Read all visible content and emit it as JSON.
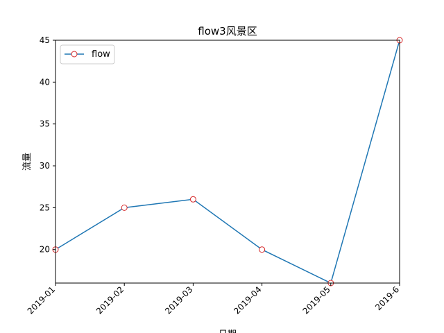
{
  "chart_data": {
    "type": "line",
    "title": "flow3风景区",
    "xlabel": "日期",
    "ylabel": "流量",
    "categories": [
      "2019-01",
      "2019-02",
      "2019-03",
      "2019-04",
      "2019-05",
      "2019-6"
    ],
    "series": [
      {
        "name": "flow",
        "values": [
          20,
          25,
          26,
          20,
          16,
          45
        ]
      }
    ],
    "ylim": [
      16,
      45
    ],
    "yticks": [
      20,
      25,
      30,
      35,
      40,
      45
    ],
    "grid": false,
    "legend": "upper-left",
    "colors": {
      "line": "#1f77b4",
      "marker_edge": "#d62728",
      "marker_face": "#ffffff"
    }
  }
}
